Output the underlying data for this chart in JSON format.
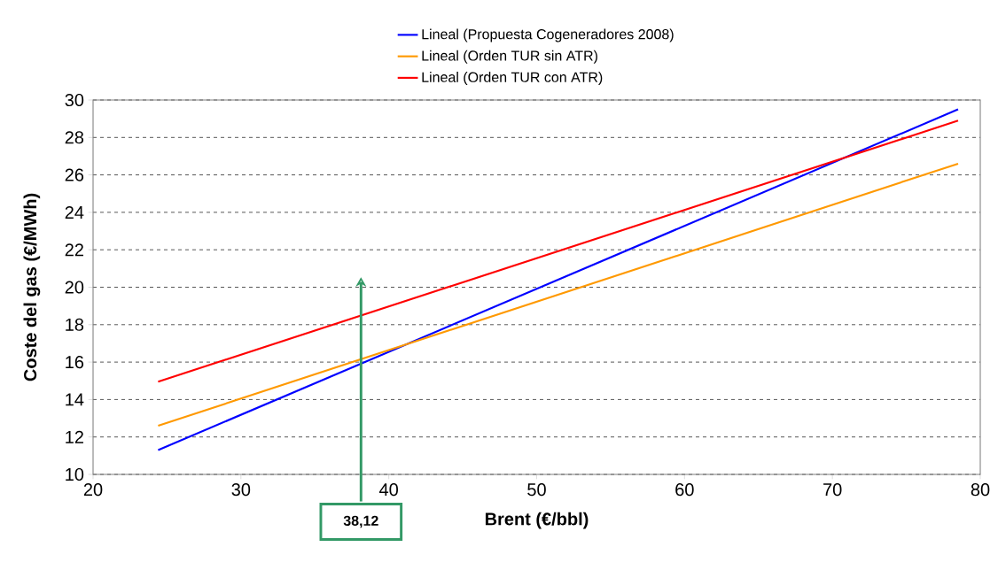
{
  "chart_data": {
    "type": "line",
    "xlabel": "Brent (€/bbl)",
    "ylabel": "Coste del gas (€/MWh)",
    "x": [
      24.4,
      78.5
    ],
    "series": [
      {
        "name": "Lineal (Propuesta Cogeneradores 2008)",
        "color": "#0000ff",
        "values": [
          11.3,
          29.5
        ]
      },
      {
        "name": "Lineal (Orden TUR sin ATR)",
        "color": "#ff9900",
        "values": [
          12.6,
          26.6
        ]
      },
      {
        "name": "Lineal (Orden TUR con ATR)",
        "color": "#ff0000",
        "values": [
          14.95,
          28.9
        ]
      }
    ],
    "xlim": [
      20,
      80
    ],
    "xticks": [
      20,
      30,
      40,
      50,
      60,
      70,
      80
    ],
    "ylim": [
      10,
      30
    ],
    "yticks": [
      10,
      12,
      14,
      16,
      18,
      20,
      22,
      24,
      26,
      28,
      30
    ],
    "ref_lines": [
      {
        "axis": "x",
        "value": 38.12,
        "label": "38,12",
        "color": "#339966"
      }
    ],
    "grid": "y",
    "legend": "top",
    "marker": "none",
    "line_style": "solid"
  }
}
